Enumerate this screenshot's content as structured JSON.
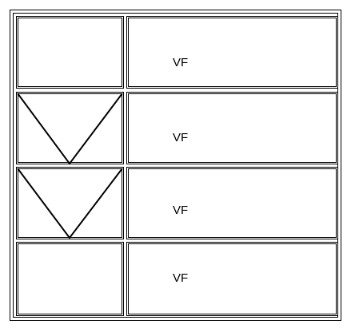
{
  "rows": [
    {
      "label": "VF",
      "has_v_mark": false
    },
    {
      "label": "VF",
      "has_v_mark": true
    },
    {
      "label": "VF",
      "has_v_mark": true
    },
    {
      "label": "VF",
      "has_v_mark": false
    }
  ],
  "colors": {
    "line": "#000000",
    "background": "#ffffff"
  }
}
